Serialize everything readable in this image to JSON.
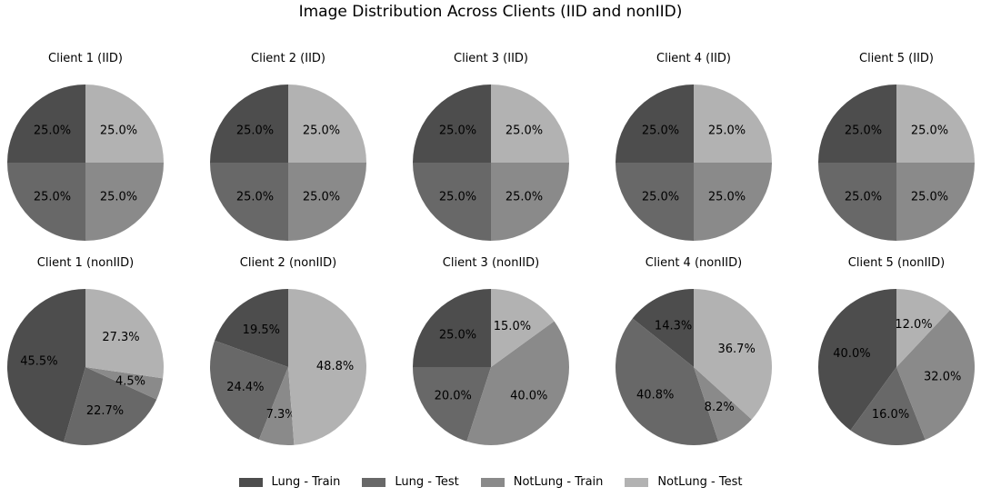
{
  "chart_data": {
    "type": "pie",
    "title": "Image Distribution Across Clients (IID and nonIID)",
    "legend": [
      "Lung - Train",
      "Lung - Test",
      "NotLung - Train",
      "NotLung - Test"
    ],
    "legend_position": "bottom",
    "colors": [
      "#4d4d4d",
      "#686868",
      "#8a8a8a",
      "#b2b2b2"
    ],
    "charts": [
      {
        "title": "Client 1 (IID)",
        "values": [
          25.0,
          25.0,
          25.0,
          25.0
        ],
        "labels": [
          "25.0%",
          "25.0%",
          "25.0%",
          "25.0%"
        ]
      },
      {
        "title": "Client 2 (IID)",
        "values": [
          25.0,
          25.0,
          25.0,
          25.0
        ],
        "labels": [
          "25.0%",
          "25.0%",
          "25.0%",
          "25.0%"
        ]
      },
      {
        "title": "Client 3 (IID)",
        "values": [
          25.0,
          25.0,
          25.0,
          25.0
        ],
        "labels": [
          "25.0%",
          "25.0%",
          "25.0%",
          "25.0%"
        ]
      },
      {
        "title": "Client 4 (IID)",
        "values": [
          25.0,
          25.0,
          25.0,
          25.0
        ],
        "labels": [
          "25.0%",
          "25.0%",
          "25.0%",
          "25.0%"
        ]
      },
      {
        "title": "Client 5 (IID)",
        "values": [
          25.0,
          25.0,
          25.0,
          25.0
        ],
        "labels": [
          "25.0%",
          "25.0%",
          "25.0%",
          "25.0%"
        ]
      },
      {
        "title": "Client 1 (nonIID)",
        "values": [
          45.5,
          22.7,
          4.5,
          27.3
        ],
        "labels": [
          "45.5%",
          "22.7%",
          "4.5%",
          "27.3%"
        ]
      },
      {
        "title": "Client 2 (nonIID)",
        "values": [
          19.5,
          24.4,
          7.3,
          48.8
        ],
        "labels": [
          "19.5%",
          "24.4%",
          "7.3%",
          "48.8%"
        ]
      },
      {
        "title": "Client 3 (nonIID)",
        "values": [
          25.0,
          20.0,
          40.0,
          15.0
        ],
        "labels": [
          "25.0%",
          "20.0%",
          "40.0%",
          "15.0%"
        ]
      },
      {
        "title": "Client 4 (nonIID)",
        "values": [
          14.3,
          40.8,
          8.2,
          36.7
        ],
        "labels": [
          "14.3%",
          "40.8%",
          "8.2%",
          "36.7%"
        ]
      },
      {
        "title": "Client 5 (nonIID)",
        "values": [
          40.0,
          16.0,
          32.0,
          12.0
        ],
        "labels": [
          "40.0%",
          "16.0%",
          "32.0%",
          "12.0%"
        ]
      }
    ]
  }
}
